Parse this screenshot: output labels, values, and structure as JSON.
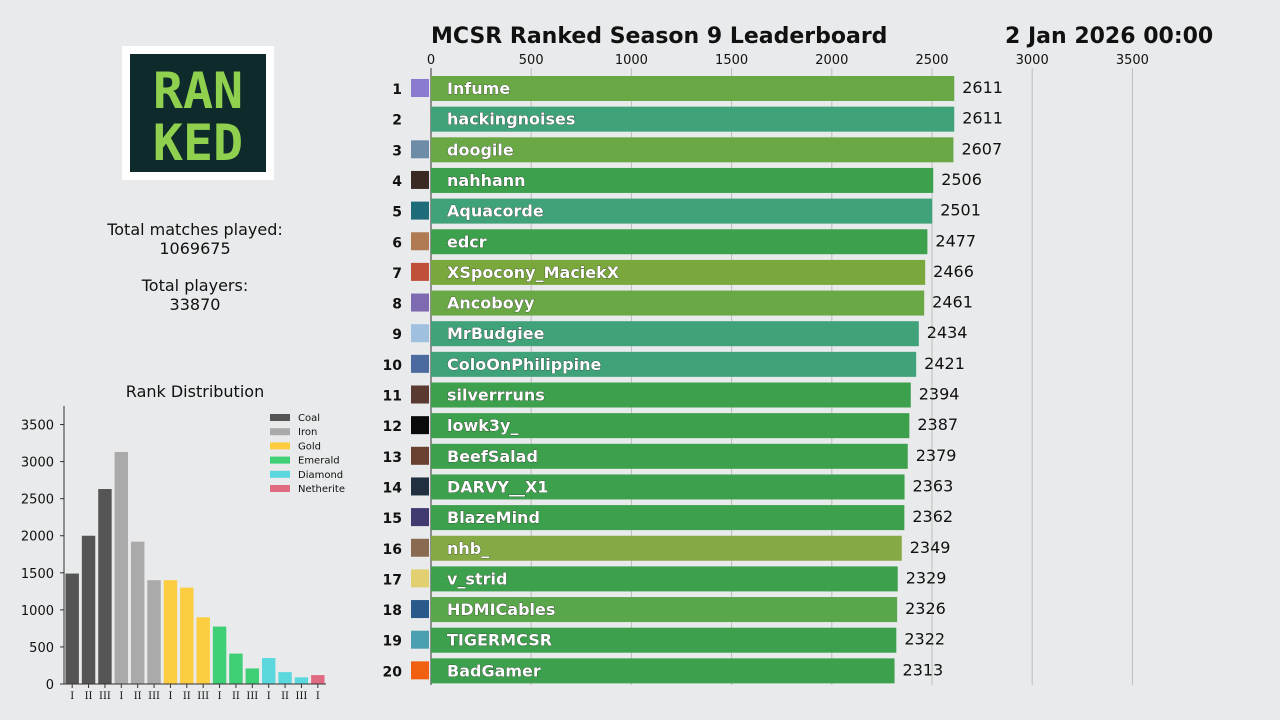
{
  "header": {
    "title": "MCSR Ranked Season 9 Leaderboard",
    "datetime": "2 Jan 2026 00:00"
  },
  "logo": {
    "text": "RANKED"
  },
  "stats": {
    "matches_label": "Total matches played:",
    "matches_value": "1069675",
    "players_label": "Total players:",
    "players_value": "33870"
  },
  "chart_data": [
    {
      "type": "bar",
      "orientation": "horizontal",
      "title": "MCSR Ranked Season 9 Leaderboard",
      "xlim": [
        0,
        3800
      ],
      "xticks": [
        0,
        500,
        1000,
        1500,
        2000,
        2500,
        3000,
        3500
      ],
      "grid": true,
      "ranks": [
        1,
        2,
        3,
        4,
        5,
        6,
        7,
        8,
        9,
        10,
        11,
        12,
        13,
        14,
        15,
        16,
        17,
        18,
        19,
        20
      ],
      "categories": [
        "Infume",
        "hackingnoises",
        "doogile",
        "nahhann",
        "Aquacorde",
        "edcr",
        "XSpocony_MaciekX",
        "Ancoboyy",
        "MrBudgiee",
        "ColoOnPhilippine",
        "silverrruns",
        "lowk3y_",
        "BeefSalad",
        "DARVY__X1",
        "BlazeMind",
        "nhb_",
        "v_strid",
        "HDMICables",
        "TIGERMCSR",
        "BadGamer"
      ],
      "values": [
        2611,
        2611,
        2607,
        2506,
        2501,
        2477,
        2466,
        2461,
        2434,
        2421,
        2394,
        2387,
        2379,
        2363,
        2362,
        2349,
        2329,
        2326,
        2322,
        2313
      ],
      "bar_colors": [
        "#6aa846",
        "#3fa279",
        "#6aa846",
        "#3da04c",
        "#3fa279",
        "#3da04c",
        "#7aa83c",
        "#6aa846",
        "#3fa279",
        "#3fa279",
        "#3da04c",
        "#3da04c",
        "#3da04c",
        "#3da04c",
        "#3da04c",
        "#85a944",
        "#3da04c",
        "#5aa64a",
        "#3da04c",
        "#3da04c"
      ],
      "avatar_colors": [
        "#8a7ad0",
        "#e9eaeb",
        "#6c8ca8",
        "#3b2a22",
        "#1e6b7a",
        "#b07a52",
        "#c0503a",
        "#7d6ab0",
        "#a0c0e0",
        "#4a6aa0",
        "#5a3a30",
        "#0a0a0a",
        "#6a4030",
        "#203040",
        "#403a70",
        "#8a6a50",
        "#e0d070",
        "#2a5a8a",
        "#4aa0b0",
        "#f06010"
      ]
    },
    {
      "type": "bar",
      "title": "Rank Distribution",
      "categories": [
        "I",
        "II",
        "III",
        "I",
        "II",
        "III",
        "I",
        "II",
        "III",
        "I",
        "II",
        "III",
        "I",
        "II",
        "III",
        "I"
      ],
      "values": [
        1490,
        2000,
        2630,
        3130,
        1920,
        1400,
        1400,
        1300,
        900,
        775,
        410,
        210,
        350,
        160,
        90,
        120
      ],
      "tier_index": [
        0,
        0,
        0,
        1,
        1,
        1,
        2,
        2,
        2,
        3,
        3,
        3,
        4,
        4,
        4,
        5
      ],
      "ylim": [
        0,
        3750
      ],
      "yticks": [
        0,
        500,
        1000,
        1500,
        2000,
        2500,
        3000,
        3500
      ],
      "legend": [
        {
          "name": "Coal",
          "color": "#555555"
        },
        {
          "name": "Iron",
          "color": "#aaaaaa"
        },
        {
          "name": "Gold",
          "color": "#fccd40"
        },
        {
          "name": "Emerald",
          "color": "#3ecf77"
        },
        {
          "name": "Diamond",
          "color": "#5ad8dd"
        },
        {
          "name": "Netherite",
          "color": "#e06a82"
        }
      ],
      "legend_position": "top-right"
    }
  ]
}
